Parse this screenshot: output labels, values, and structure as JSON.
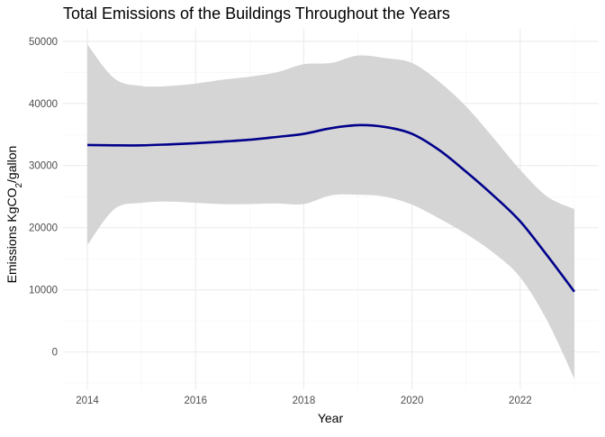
{
  "chart_data": {
    "type": "line",
    "title": "Total Emissions of the Buildings Throughout the Years",
    "xlabel": "Year",
    "ylabel": {
      "prefix": "Emissions KgCO",
      "subscript": "2",
      "suffix": "/gallon"
    },
    "xlim": [
      2013.55,
      2023.45
    ],
    "ylim": [
      -6000,
      52000
    ],
    "x_ticks": [
      2014,
      2016,
      2018,
      2020,
      2022
    ],
    "x_tick_labels": [
      "2014",
      "2016",
      "2018",
      "2020",
      "2022"
    ],
    "y_ticks": [
      0,
      10000,
      20000,
      30000,
      40000,
      50000
    ],
    "y_tick_labels": [
      "0",
      "10000",
      "20000",
      "30000",
      "40000",
      "50000"
    ],
    "grid": true,
    "legend": "none",
    "colors": {
      "line": "#00008b",
      "band": "#d3d3d3",
      "grid": "#ebebeb"
    },
    "series": [
      {
        "x": [
          2014,
          2014.5,
          2015,
          2015.5,
          2016,
          2016.5,
          2017,
          2017.5,
          2018,
          2018.5,
          2019,
          2019.5,
          2020,
          2020.5,
          2021,
          2021.5,
          2022,
          2022.5,
          2023
        ],
        "y": [
          33300,
          33250,
          33250,
          33400,
          33600,
          33850,
          34150,
          34600,
          35100,
          36000,
          36500,
          36200,
          35100,
          32500,
          29000,
          25200,
          21000,
          15500,
          9700
        ],
        "lower": [
          17200,
          23000,
          24000,
          24200,
          24000,
          23800,
          23800,
          23900,
          23800,
          25200,
          25300,
          25000,
          23700,
          21500,
          19000,
          16000,
          12000,
          5000,
          -4300
        ],
        "upper": [
          49500,
          44000,
          42800,
          42800,
          43200,
          43800,
          44300,
          45000,
          46300,
          46500,
          47700,
          47300,
          46500,
          43500,
          39500,
          34500,
          29300,
          25000,
          23000
        ]
      }
    ]
  }
}
